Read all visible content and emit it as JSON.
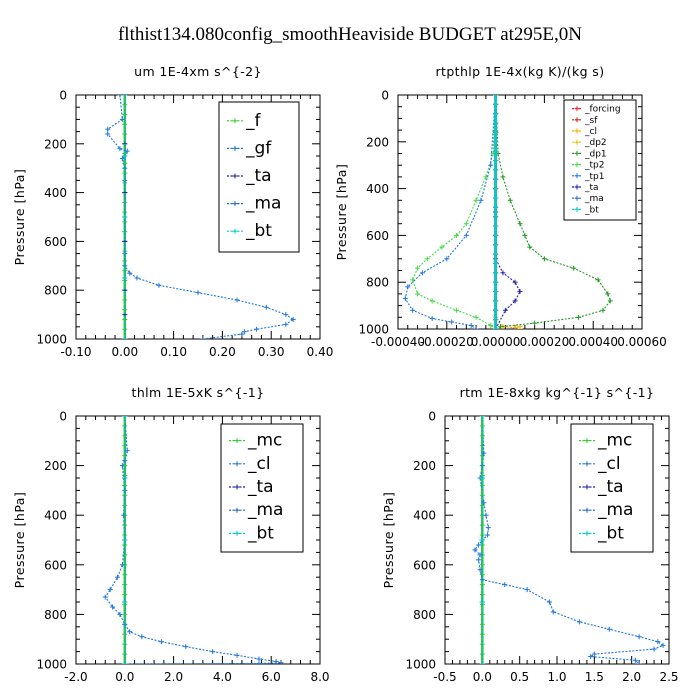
{
  "figure": {
    "title": "flthist134.080config_smoothHeaviside  BUDGET at295E,0N"
  },
  "chart_data": [
    {
      "type": "line",
      "title": "um   1E-4xm s^{-2}",
      "ylabel": "Pressure [hPa]",
      "xlim": [
        -0.1,
        0.4
      ],
      "ylim": [
        1000,
        0
      ],
      "x_ticks": [
        "-0.10",
        "0.00",
        "0.10",
        "0.20",
        "0.30",
        "0.40"
      ],
      "y_ticks": [
        "0",
        "200",
        "400",
        "600",
        "800",
        "1000"
      ],
      "grid": false,
      "legend_position": "top-right",
      "series": [
        {
          "name": "_f",
          "color": "#33cc33",
          "x": [
            0.0,
            0.0
          ],
          "y": [
            0,
            1000
          ]
        },
        {
          "name": "_gf",
          "color": "#1f78d8",
          "x": [
            -0.01,
            -0.005,
            -0.035,
            -0.035,
            -0.01,
            0.005,
            -0.005,
            0.0,
            0.0,
            0.0,
            0.0,
            0.0,
            0.0,
            0.0,
            0.01,
            0.025,
            0.07,
            0.15,
            0.23,
            0.29,
            0.33,
            0.345,
            0.33,
            0.27,
            0.245,
            0.24,
            0.16
          ],
          "y": [
            0,
            100,
            140,
            160,
            220,
            230,
            260,
            300,
            350,
            400,
            500,
            600,
            650,
            700,
            730,
            750,
            780,
            810,
            840,
            870,
            900,
            920,
            940,
            960,
            970,
            980,
            1000
          ]
        },
        {
          "name": "_ta",
          "color": "#2222aa",
          "x": [
            0.0,
            0.0,
            0.0,
            0.0,
            0.0,
            0.0,
            0.0
          ],
          "y": [
            0,
            200,
            400,
            600,
            800,
            900,
            1000
          ]
        },
        {
          "name": "_ma",
          "color": "#2266cc",
          "x": [
            0.0,
            0.0,
            0.0,
            0.0,
            0.0
          ],
          "y": [
            0,
            250,
            500,
            750,
            1000
          ]
        },
        {
          "name": "_bt",
          "color": "#00cccc",
          "x": [
            0.0,
            0.0,
            0.0,
            0.0,
            0.0
          ],
          "y": [
            0,
            250,
            500,
            750,
            1000
          ]
        }
      ]
    },
    {
      "type": "line",
      "title": "rtpthlp   1E-4x(kg K)/(kg s)",
      "ylabel": "Pressure [hPa]",
      "xlim": [
        -0.0004,
        0.0006
      ],
      "ylim": [
        1000,
        0
      ],
      "x_ticks": [
        "-0.00040",
        "-0.00020",
        "0.00000",
        "0.00020",
        "0.00040",
        "0.00060"
      ],
      "y_ticks": [
        "0",
        "200",
        "400",
        "600",
        "800",
        "1000"
      ],
      "grid": false,
      "legend_position": "top-right",
      "series": [
        {
          "name": "_forcing",
          "color": "#ee2222",
          "x": [
            0.0,
            0.0
          ],
          "y": [
            0,
            1000
          ]
        },
        {
          "name": "_sf",
          "color": "#cc2222",
          "x": [
            0.0,
            0.0
          ],
          "y": [
            0,
            1000
          ]
        },
        {
          "name": "_cl",
          "color": "#ffaa00",
          "x": [
            0.0,
            0.0,
            0.0,
            3e-05,
            8e-05,
            0.0001,
            0.0001
          ],
          "y": [
            0,
            500,
            950,
            990,
            995,
            990,
            1000
          ]
        },
        {
          "name": "_dp2",
          "color": "#e8c000",
          "x": [
            0.0,
            0.0
          ],
          "y": [
            0,
            1000
          ]
        },
        {
          "name": "_dp1",
          "color": "#229922",
          "x": [
            0.0,
            1e-05,
            3e-05,
            6e-05,
            0.0001,
            0.00012,
            0.00014,
            0.0002,
            0.00032,
            0.00042,
            0.00046,
            0.00047,
            0.00044,
            0.00034,
            0.00016,
            2e-05,
            0.0
          ],
          "y": [
            0,
            250,
            350,
            450,
            550,
            600,
            650,
            700,
            740,
            790,
            850,
            880,
            920,
            950,
            975,
            990,
            1000
          ]
        },
        {
          "name": "_tp2",
          "color": "#44dd44",
          "x": [
            0.0,
            -1e-05,
            -4e-05,
            -8e-05,
            -0.00012,
            -0.00016,
            -0.00022,
            -0.00028,
            -0.00032,
            -0.00034,
            -0.00032,
            -0.00026,
            -0.00016,
            -8e-05,
            -2e-05,
            0.0
          ],
          "y": [
            0,
            250,
            350,
            450,
            550,
            600,
            650,
            700,
            740,
            790,
            850,
            880,
            920,
            950,
            985,
            1000
          ]
        },
        {
          "name": "_tp1",
          "color": "#2277dd",
          "x": [
            0.0,
            -2e-05,
            -6e-05,
            -0.00012,
            -0.0002,
            -0.0003,
            -0.00036,
            -0.00037,
            -0.00034,
            -0.00026,
            -0.00018,
            -0.0001,
            -8e-05
          ],
          "y": [
            0,
            300,
            450,
            600,
            700,
            760,
            820,
            870,
            920,
            955,
            970,
            985,
            1000
          ]
        },
        {
          "name": "_ta",
          "color": "#2222aa",
          "x": [
            0.0,
            0.0,
            0.0,
            3e-05,
            8e-05,
            0.0001,
            8e-05,
            4e-05,
            0.0
          ],
          "y": [
            0,
            500,
            700,
            760,
            800,
            840,
            880,
            920,
            1000
          ]
        },
        {
          "name": "_ma",
          "color": "#3366cc",
          "x": [
            0.0,
            0.0
          ],
          "y": [
            0,
            1000
          ]
        },
        {
          "name": "_bt",
          "color": "#00cccc",
          "x": [
            0.0,
            0.0
          ],
          "y": [
            0,
            1000
          ]
        }
      ]
    },
    {
      "type": "line",
      "title": "thlm   1E-5xK s^{-1}",
      "ylabel": "Pressure [hPa]",
      "xlim": [
        -2.0,
        8.0
      ],
      "ylim": [
        1000,
        0
      ],
      "x_ticks": [
        "-2.0",
        "0.0",
        "2.0",
        "4.0",
        "6.0",
        "8.0"
      ],
      "y_ticks": [
        "0",
        "200",
        "400",
        "600",
        "800",
        "1000"
      ],
      "grid": false,
      "legend_position": "top-right",
      "series": [
        {
          "name": "_mc",
          "color": "#33cc33",
          "x": [
            0.0,
            0.0
          ],
          "y": [
            0,
            1000
          ]
        },
        {
          "name": "_cl",
          "color": "#1f78d8",
          "x": [
            0.0,
            0.1,
            0.0,
            -0.1,
            0.0,
            -0.05,
            0.0,
            -0.1,
            -0.3,
            -0.6,
            -0.8,
            -0.5,
            -0.2,
            0.0,
            0.2,
            0.7,
            1.5,
            2.5,
            3.6,
            4.6,
            5.5,
            6.2,
            6.4,
            5.5,
            0.0
          ],
          "y": [
            0,
            140,
            180,
            200,
            300,
            400,
            500,
            600,
            650,
            700,
            730,
            770,
            800,
            840,
            870,
            890,
            910,
            930,
            950,
            965,
            980,
            990,
            995,
            998,
            1000
          ]
        },
        {
          "name": "_ta",
          "color": "#2222aa",
          "x": [
            0.0,
            0.0,
            0.0,
            0.0,
            0.0
          ],
          "y": [
            0,
            250,
            500,
            750,
            1000
          ]
        },
        {
          "name": "_ma",
          "color": "#2266cc",
          "x": [
            0.0,
            0.0,
            0.0,
            0.0,
            0.0
          ],
          "y": [
            0,
            250,
            500,
            750,
            1000
          ]
        },
        {
          "name": "_bt",
          "color": "#00cccc",
          "x": [
            0.0,
            0.0,
            0.0,
            0.0,
            0.0
          ],
          "y": [
            0,
            250,
            500,
            750,
            1000
          ]
        }
      ]
    },
    {
      "type": "line",
      "title": "rtm   1E-8xkg kg^{-1} s^{-1}",
      "ylabel": "Pressure [hPa]",
      "xlim": [
        -0.5,
        2.5
      ],
      "ylim": [
        1000,
        0
      ],
      "x_ticks": [
        "-0.5",
        "0.0",
        "0.5",
        "1.0",
        "1.5",
        "2.0",
        "2.5"
      ],
      "y_ticks": [
        "0",
        "200",
        "400",
        "600",
        "800",
        "1000"
      ],
      "grid": false,
      "legend_position": "top-right",
      "series": [
        {
          "name": "_mc",
          "color": "#33cc33",
          "x": [
            0.0,
            0.0
          ],
          "y": [
            0,
            1000
          ]
        },
        {
          "name": "_cl",
          "color": "#1f78d8",
          "x": [
            0.0,
            0.02,
            0.0,
            -0.03,
            0.02,
            0.05,
            0.08,
            0.07,
            0.0,
            -0.05,
            -0.1,
            -0.03,
            -0.05,
            -0.03,
            0.0,
            0.3,
            0.6,
            0.9,
            0.95,
            1.3,
            1.7,
            2.1,
            2.35,
            2.42,
            2.3,
            1.5,
            1.45,
            2.05,
            2.1
          ],
          "y": [
            0,
            150,
            200,
            250,
            350,
            400,
            450,
            480,
            500,
            520,
            540,
            560,
            580,
            620,
            660,
            680,
            700,
            750,
            790,
            830,
            860,
            890,
            910,
            925,
            940,
            960,
            970,
            985,
            1000
          ]
        },
        {
          "name": "_ta",
          "color": "#2222aa",
          "x": [
            0.0,
            0.0,
            0.0,
            0.0,
            0.0
          ],
          "y": [
            0,
            250,
            500,
            750,
            1000
          ]
        },
        {
          "name": "_ma",
          "color": "#2266cc",
          "x": [
            0.0,
            0.0,
            0.0,
            0.0,
            0.0
          ],
          "y": [
            0,
            250,
            500,
            750,
            1000
          ]
        },
        {
          "name": "_bt",
          "color": "#00cccc",
          "x": [
            0.0,
            0.0,
            0.0,
            0.0,
            0.0
          ],
          "y": [
            0,
            250,
            500,
            750,
            1000
          ]
        }
      ]
    }
  ]
}
